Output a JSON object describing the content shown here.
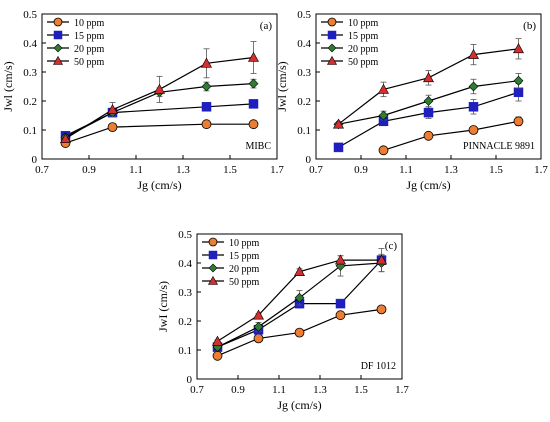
{
  "chart_data": [
    {
      "type": "line",
      "panel_label": "(a)",
      "annotation": "MIBC",
      "xlabel": "Jg (cm/s)",
      "ylabel": "Jwl (cm/s)",
      "xlim": [
        0.7,
        1.7
      ],
      "ylim": [
        0,
        0.5
      ],
      "xticks": [
        "0.7",
        "0.9",
        "1.1",
        "1.3",
        "1.5",
        "1.7"
      ],
      "yticks": [
        "0",
        "0.1",
        "0.2",
        "0.3",
        "0.4",
        "0.5"
      ],
      "legend_position": "top-left",
      "series": [
        {
          "name": "10 ppm",
          "color": "#ED7D31",
          "marker": "circle",
          "x": [
            0.8,
            1.0,
            1.4,
            1.6
          ],
          "y": [
            0.055,
            0.11,
            0.12,
            0.12
          ]
        },
        {
          "name": "15 ppm",
          "color": "#1F1FBF",
          "marker": "square",
          "x": [
            0.8,
            1.0,
            1.4,
            1.6
          ],
          "y": [
            0.08,
            0.16,
            0.18,
            0.19
          ]
        },
        {
          "name": "20 ppm",
          "color": "#2E7D32",
          "marker": "diamond",
          "x": [
            0.8,
            1.0,
            1.2,
            1.4,
            1.6
          ],
          "y": [
            0.075,
            0.16,
            0.23,
            0.25,
            0.26
          ],
          "err": [
            0.005,
            0.01,
            0.015,
            0.015,
            0.015
          ]
        },
        {
          "name": "50 ppm",
          "color": "#D32F2F",
          "marker": "triangle",
          "x": [
            0.8,
            1.0,
            1.2,
            1.4,
            1.6
          ],
          "y": [
            0.07,
            0.17,
            0.24,
            0.33,
            0.35
          ],
          "err": [
            0.005,
            0.025,
            0.045,
            0.05,
            0.055
          ]
        }
      ]
    },
    {
      "type": "line",
      "panel_label": "(b)",
      "annotation": "PINNACLE 9891",
      "xlabel": "Jg (cm/s)",
      "ylabel": "Jwl (cm/s)",
      "xlim": [
        0.7,
        1.7
      ],
      "ylim": [
        0,
        0.5
      ],
      "xticks": [
        "0.7",
        "0.9",
        "1.1",
        "1.3",
        "1.5",
        "1.7"
      ],
      "yticks": [
        "0",
        "0.1",
        "0.2",
        "0.3",
        "0.4",
        "0.5"
      ],
      "legend_position": "top-left",
      "series": [
        {
          "name": "10 ppm",
          "color": "#ED7D31",
          "marker": "circle",
          "x": [
            1.0,
            1.2,
            1.4,
            1.6
          ],
          "y": [
            0.03,
            0.08,
            0.1,
            0.13
          ],
          "err": [
            0,
            0,
            0.01,
            0.015
          ]
        },
        {
          "name": "15 ppm",
          "color": "#1F1FBF",
          "marker": "square",
          "x": [
            0.8,
            1.0,
            1.2,
            1.4,
            1.6
          ],
          "y": [
            0.04,
            0.13,
            0.16,
            0.18,
            0.23
          ],
          "err": [
            0,
            0.015,
            0.02,
            0.025,
            0.03
          ]
        },
        {
          "name": "20 ppm",
          "color": "#2E7D32",
          "marker": "diamond",
          "x": [
            0.8,
            1.0,
            1.2,
            1.4,
            1.6
          ],
          "y": [
            0.12,
            0.15,
            0.2,
            0.25,
            0.27
          ],
          "err": [
            0.005,
            0.015,
            0.02,
            0.025,
            0.025
          ]
        },
        {
          "name": "50 ppm",
          "color": "#D32F2F",
          "marker": "triangle",
          "x": [
            0.8,
            1.0,
            1.2,
            1.4,
            1.6
          ],
          "y": [
            0.12,
            0.24,
            0.28,
            0.36,
            0.38
          ],
          "err": [
            0.005,
            0.025,
            0.025,
            0.035,
            0.035
          ]
        }
      ]
    },
    {
      "type": "line",
      "panel_label": "(c)",
      "annotation": "DF 1012",
      "xlabel": "Jg (cm/s)",
      "ylabel": "JwI (cm/s)",
      "xlim": [
        0.7,
        1.7
      ],
      "ylim": [
        0,
        0.5
      ],
      "xticks": [
        "0.7",
        "0.9",
        "1.1",
        "1.3",
        "1.5",
        "1.7"
      ],
      "yticks": [
        "0",
        "0.1",
        "0.2",
        "0.3",
        "0.4",
        "0.5"
      ],
      "legend_position": "top-left",
      "series": [
        {
          "name": "10 ppm",
          "color": "#ED7D31",
          "marker": "circle",
          "x": [
            0.8,
            1.0,
            1.2,
            1.4,
            1.6
          ],
          "y": [
            0.08,
            0.14,
            0.16,
            0.22,
            0.24
          ]
        },
        {
          "name": "15 ppm",
          "color": "#1F1FBF",
          "marker": "square",
          "x": [
            0.8,
            1.0,
            1.2,
            1.4,
            1.6
          ],
          "y": [
            0.11,
            0.17,
            0.26,
            0.26,
            0.41
          ],
          "err": [
            0,
            0,
            0.015,
            0,
            0.015
          ]
        },
        {
          "name": "20 ppm",
          "color": "#2E7D32",
          "marker": "diamond",
          "x": [
            0.8,
            1.0,
            1.2,
            1.4,
            1.6
          ],
          "y": [
            0.11,
            0.18,
            0.28,
            0.39,
            0.4
          ],
          "err": [
            0.005,
            0.015,
            0.025,
            0.035,
            0.03
          ]
        },
        {
          "name": "50 ppm",
          "color": "#D32F2F",
          "marker": "triangle",
          "x": [
            0.8,
            1.0,
            1.2,
            1.4,
            1.6
          ],
          "y": [
            0.13,
            0.22,
            0.37,
            0.41,
            0.41
          ],
          "err": [
            0.005,
            0.005,
            0.01,
            0.015,
            0.04
          ]
        }
      ]
    }
  ]
}
